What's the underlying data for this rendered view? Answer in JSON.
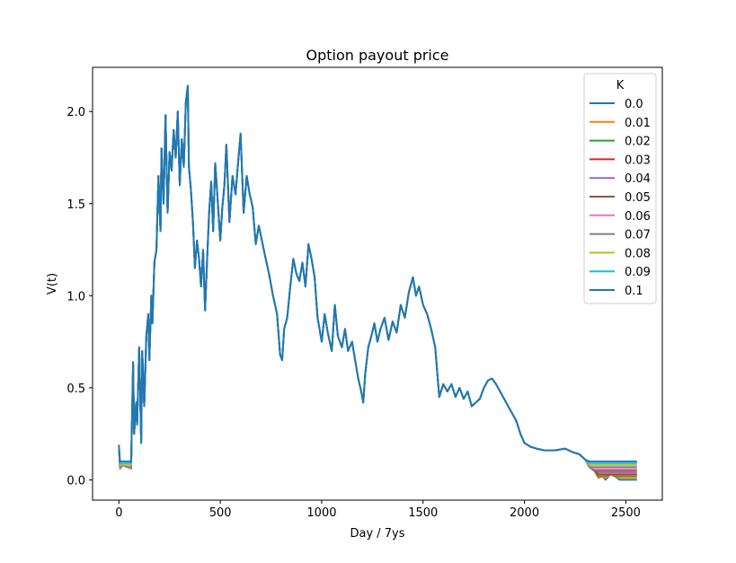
{
  "chart_data": {
    "type": "line",
    "title": "Option payout price",
    "xlabel": "Day / 7ys",
    "ylabel": "V(t)",
    "xlim": [
      -130,
      2680
    ],
    "ylim": [
      -0.11,
      2.24
    ],
    "xticks": [
      0,
      500,
      1000,
      1500,
      2000,
      2500
    ],
    "yticks": [
      0.0,
      0.5,
      1.0,
      1.5,
      2.0
    ],
    "xtick_labels": [
      "0",
      "500",
      "1000",
      "1500",
      "2000",
      "2500"
    ],
    "ytick_labels": [
      "0.0",
      "0.5",
      "1.0",
      "1.5",
      "2.0"
    ],
    "grid": false,
    "legend": {
      "title": "K",
      "position": "top-right"
    },
    "underlying": [
      [
        0,
        0.19
      ],
      [
        5,
        0.06
      ],
      [
        20,
        0.08
      ],
      [
        40,
        0.07
      ],
      [
        60,
        0.06
      ],
      [
        70,
        0.64
      ],
      [
        75,
        0.25
      ],
      [
        85,
        0.42
      ],
      [
        90,
        0.3
      ],
      [
        100,
        0.72
      ],
      [
        110,
        0.2
      ],
      [
        115,
        0.7
      ],
      [
        125,
        0.4
      ],
      [
        135,
        0.78
      ],
      [
        145,
        0.9
      ],
      [
        150,
        0.65
      ],
      [
        160,
        1.0
      ],
      [
        165,
        0.85
      ],
      [
        175,
        1.18
      ],
      [
        185,
        1.25
      ],
      [
        195,
        1.65
      ],
      [
        205,
        1.35
      ],
      [
        210,
        1.8
      ],
      [
        220,
        1.5
      ],
      [
        230,
        1.98
      ],
      [
        240,
        1.45
      ],
      [
        250,
        1.78
      ],
      [
        260,
        1.68
      ],
      [
        270,
        1.9
      ],
      [
        280,
        1.75
      ],
      [
        290,
        2.0
      ],
      [
        300,
        1.6
      ],
      [
        310,
        1.85
      ],
      [
        320,
        1.7
      ],
      [
        330,
        2.05
      ],
      [
        340,
        2.14
      ],
      [
        345,
        1.7
      ],
      [
        355,
        1.58
      ],
      [
        365,
        1.4
      ],
      [
        375,
        1.15
      ],
      [
        385,
        1.3
      ],
      [
        395,
        1.2
      ],
      [
        405,
        1.05
      ],
      [
        415,
        1.25
      ],
      [
        425,
        0.92
      ],
      [
        435,
        1.2
      ],
      [
        445,
        1.45
      ],
      [
        455,
        1.62
      ],
      [
        465,
        1.35
      ],
      [
        475,
        1.72
      ],
      [
        485,
        1.55
      ],
      [
        500,
        1.3
      ],
      [
        510,
        1.48
      ],
      [
        520,
        1.6
      ],
      [
        530,
        1.82
      ],
      [
        545,
        1.4
      ],
      [
        560,
        1.65
      ],
      [
        575,
        1.55
      ],
      [
        590,
        1.75
      ],
      [
        600,
        1.88
      ],
      [
        615,
        1.45
      ],
      [
        630,
        1.65
      ],
      [
        645,
        1.55
      ],
      [
        660,
        1.48
      ],
      [
        675,
        1.28
      ],
      [
        690,
        1.38
      ],
      [
        705,
        1.3
      ],
      [
        720,
        1.22
      ],
      [
        740,
        1.12
      ],
      [
        760,
        1.0
      ],
      [
        780,
        0.9
      ],
      [
        795,
        0.68
      ],
      [
        805,
        0.65
      ],
      [
        815,
        0.82
      ],
      [
        830,
        0.88
      ],
      [
        845,
        1.05
      ],
      [
        860,
        1.2
      ],
      [
        875,
        1.12
      ],
      [
        890,
        1.08
      ],
      [
        905,
        1.18
      ],
      [
        920,
        1.05
      ],
      [
        935,
        1.28
      ],
      [
        950,
        1.2
      ],
      [
        965,
        1.1
      ],
      [
        980,
        0.88
      ],
      [
        1000,
        0.75
      ],
      [
        1015,
        0.9
      ],
      [
        1030,
        0.8
      ],
      [
        1050,
        0.7
      ],
      [
        1065,
        0.95
      ],
      [
        1080,
        0.78
      ],
      [
        1100,
        0.72
      ],
      [
        1115,
        0.82
      ],
      [
        1130,
        0.7
      ],
      [
        1150,
        0.75
      ],
      [
        1165,
        0.65
      ],
      [
        1180,
        0.55
      ],
      [
        1195,
        0.48
      ],
      [
        1205,
        0.42
      ],
      [
        1215,
        0.58
      ],
      [
        1230,
        0.72
      ],
      [
        1245,
        0.78
      ],
      [
        1260,
        0.85
      ],
      [
        1275,
        0.75
      ],
      [
        1290,
        0.82
      ],
      [
        1310,
        0.88
      ],
      [
        1330,
        0.76
      ],
      [
        1350,
        0.86
      ],
      [
        1370,
        0.8
      ],
      [
        1390,
        0.95
      ],
      [
        1410,
        0.88
      ],
      [
        1430,
        1.02
      ],
      [
        1450,
        1.1
      ],
      [
        1465,
        1.0
      ],
      [
        1480,
        1.05
      ],
      [
        1500,
        0.95
      ],
      [
        1520,
        0.9
      ],
      [
        1540,
        0.82
      ],
      [
        1560,
        0.72
      ],
      [
        1570,
        0.58
      ],
      [
        1580,
        0.45
      ],
      [
        1600,
        0.52
      ],
      [
        1620,
        0.48
      ],
      [
        1640,
        0.52
      ],
      [
        1660,
        0.45
      ],
      [
        1680,
        0.5
      ],
      [
        1700,
        0.44
      ],
      [
        1720,
        0.48
      ],
      [
        1740,
        0.4
      ],
      [
        1760,
        0.42
      ],
      [
        1780,
        0.44
      ],
      [
        1800,
        0.5
      ],
      [
        1820,
        0.54
      ],
      [
        1840,
        0.55
      ],
      [
        1860,
        0.52
      ],
      [
        1880,
        0.48
      ],
      [
        1900,
        0.44
      ],
      [
        1920,
        0.4
      ],
      [
        1940,
        0.36
      ],
      [
        1960,
        0.32
      ],
      [
        1980,
        0.25
      ],
      [
        2000,
        0.2
      ],
      [
        2030,
        0.18
      ],
      [
        2060,
        0.17
      ],
      [
        2100,
        0.16
      ],
      [
        2150,
        0.16
      ],
      [
        2200,
        0.17
      ],
      [
        2240,
        0.15
      ],
      [
        2270,
        0.14
      ],
      [
        2300,
        0.11
      ],
      [
        2320,
        0.07
      ],
      [
        2345,
        0.05
      ],
      [
        2365,
        0.01
      ],
      [
        2385,
        0.02
      ],
      [
        2400,
        0.0
      ],
      [
        2425,
        0.03
      ],
      [
        2445,
        0.02
      ],
      [
        2470,
        0.0
      ],
      [
        2520,
        0.0
      ],
      [
        2555,
        0.0
      ]
    ],
    "series": [
      {
        "name": "0.0",
        "color": "#1f77b4",
        "strike": 0.0
      },
      {
        "name": "0.01",
        "color": "#ff7f0e",
        "strike": 0.01
      },
      {
        "name": "0.02",
        "color": "#2ca02c",
        "strike": 0.02
      },
      {
        "name": "0.03",
        "color": "#d62728",
        "strike": 0.03
      },
      {
        "name": "0.04",
        "color": "#9467bd",
        "strike": 0.04
      },
      {
        "name": "0.05",
        "color": "#8c564b",
        "strike": 0.05
      },
      {
        "name": "0.06",
        "color": "#e377c2",
        "strike": 0.06
      },
      {
        "name": "0.07",
        "color": "#7f7f7f",
        "strike": 0.07
      },
      {
        "name": "0.08",
        "color": "#bcbd22",
        "strike": 0.08
      },
      {
        "name": "0.09",
        "color": "#17becf",
        "strike": 0.09
      },
      {
        "name": "0.1",
        "color": "#1f77b4",
        "strike": 0.1
      }
    ]
  }
}
